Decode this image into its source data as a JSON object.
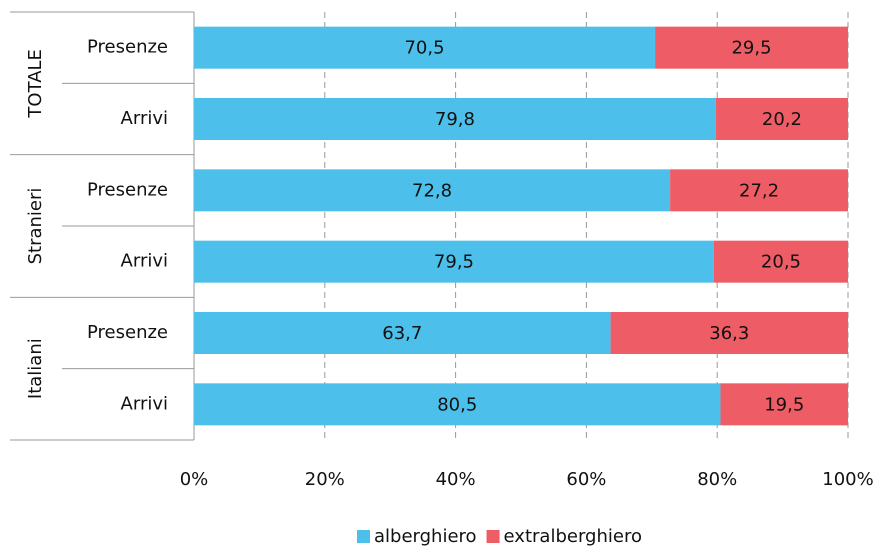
{
  "chart_data": {
    "type": "stacked_bar_horizontal",
    "groups": [
      {
        "name": "TOTALE",
        "categories": [
          "Presenze",
          "Arrivi"
        ]
      },
      {
        "name": "Stranieri",
        "categories": [
          "Presenze",
          "Arrivi"
        ]
      },
      {
        "name": "Italiani",
        "categories": [
          "Presenze",
          "Arrivi"
        ]
      }
    ],
    "series": [
      {
        "name": "alberghiero",
        "color": "#4cc0ea",
        "values": [
          70.5,
          79.8,
          72.8,
          79.5,
          63.7,
          80.5
        ],
        "value_labels": [
          "70,5",
          "79,8",
          "72,8",
          "79,5",
          "63,7",
          "80,5"
        ]
      },
      {
        "name": "extralberghiero",
        "color": "#ee5c66",
        "values": [
          29.5,
          20.2,
          27.2,
          20.5,
          36.3,
          19.5
        ],
        "value_labels": [
          "29,5",
          "20,2",
          "27,2",
          "20,5",
          "36,3",
          "19,5"
        ]
      }
    ],
    "xlim": [
      0,
      100
    ],
    "xticks": [
      {
        "value": 0,
        "label": "0%"
      },
      {
        "value": 20,
        "label": "20%"
      },
      {
        "value": 40,
        "label": "40%"
      },
      {
        "value": 60,
        "label": "60%"
      },
      {
        "value": 80,
        "label": "80%"
      },
      {
        "value": 100,
        "label": "100%"
      }
    ],
    "grid": true,
    "legend": "bottom"
  }
}
